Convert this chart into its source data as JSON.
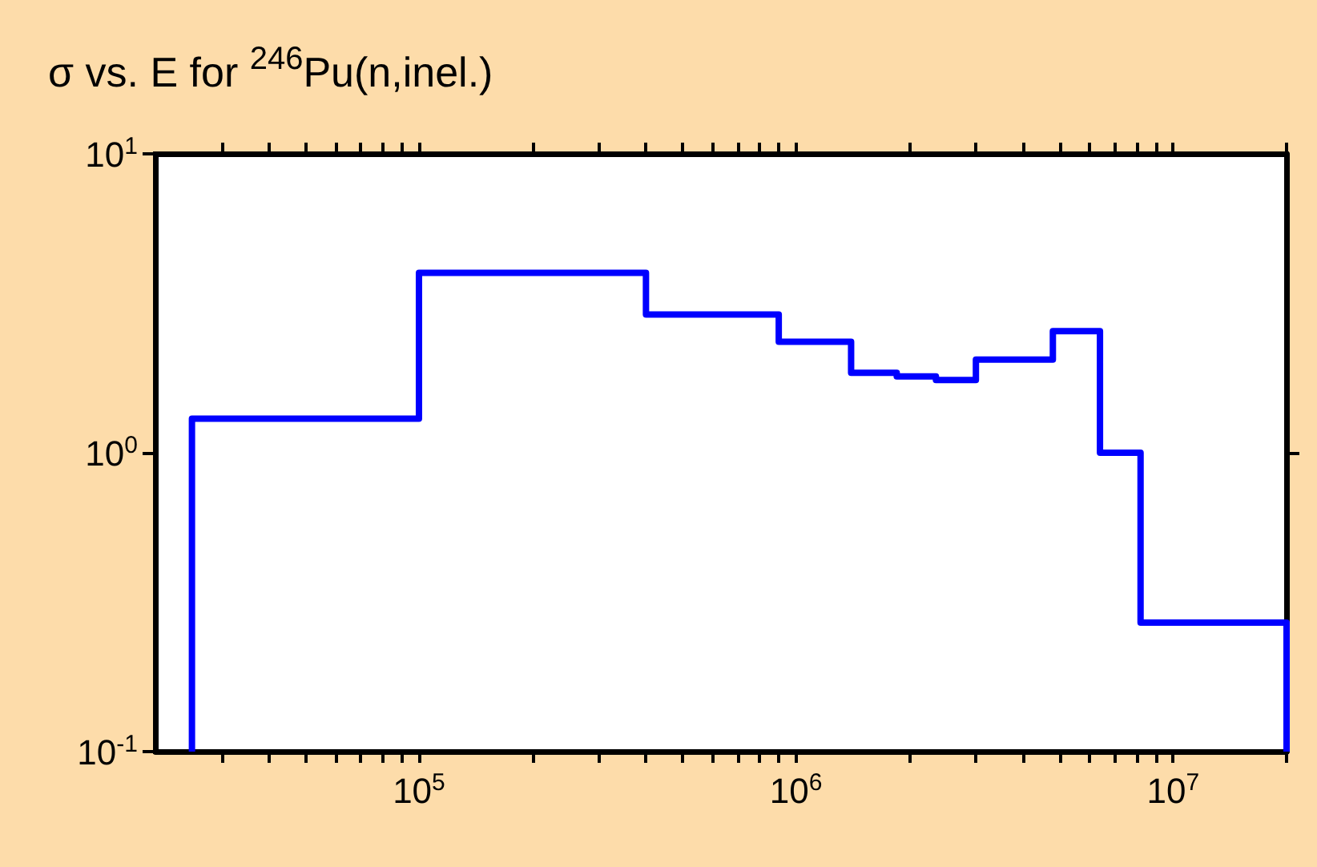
{
  "chart_data": {
    "type": "step",
    "title": "σ vs. E for $^{246}$Pu(n,inel.)",
    "x": [
      25000,
      25000,
      100000,
      400000,
      900000,
      1400000,
      1850000,
      2350000,
      3000000,
      4800000,
      6400000,
      8200000,
      20000000,
      20000000
    ],
    "series": [
      {
        "color": "#0000ff",
        "values": [
          0.1,
          1.3,
          4.0,
          2.9,
          2.35,
          1.85,
          1.8,
          1.75,
          2.05,
          2.55,
          1.0,
          0.27,
          0.27,
          0.1
        ]
      }
    ],
    "log": "xy",
    "xlim": [
      20000,
      20000000
    ],
    "ylim": [
      0.1,
      10
    ],
    "xticks": [
      {
        "value": 30000,
        "label": null
      },
      {
        "value": 40000,
        "label": null
      },
      {
        "value": 50000,
        "label": null
      },
      {
        "value": 60000,
        "label": null
      },
      {
        "value": 70000,
        "label": null
      },
      {
        "value": 80000,
        "label": null
      },
      {
        "value": 90000,
        "label": null
      },
      {
        "value": 100000,
        "label": "10$^{5}$"
      },
      {
        "value": 200000,
        "label": null
      },
      {
        "value": 300000,
        "label": null
      },
      {
        "value": 400000,
        "label": null
      },
      {
        "value": 500000,
        "label": null
      },
      {
        "value": 600000,
        "label": null
      },
      {
        "value": 700000,
        "label": null
      },
      {
        "value": 800000,
        "label": null
      },
      {
        "value": 900000,
        "label": null
      },
      {
        "value": 1000000,
        "label": "10$^{6}$"
      },
      {
        "value": 2000000,
        "label": null
      },
      {
        "value": 3000000,
        "label": null
      },
      {
        "value": 4000000,
        "label": null
      },
      {
        "value": 5000000,
        "label": null
      },
      {
        "value": 6000000,
        "label": null
      },
      {
        "value": 7000000,
        "label": null
      },
      {
        "value": 8000000,
        "label": null
      },
      {
        "value": 9000000,
        "label": null
      },
      {
        "value": 10000000,
        "label": "10$^{7}$"
      },
      {
        "value": 20000000,
        "label": null
      }
    ],
    "yticks": [
      {
        "value": 0.1,
        "label": "10$^{-1}$"
      },
      {
        "value": 1,
        "label": "10$^{0}$"
      },
      {
        "value": 10,
        "label": "10$^{1}$"
      }
    ],
    "grid": false,
    "marker": "none",
    "line_style": "solid"
  }
}
